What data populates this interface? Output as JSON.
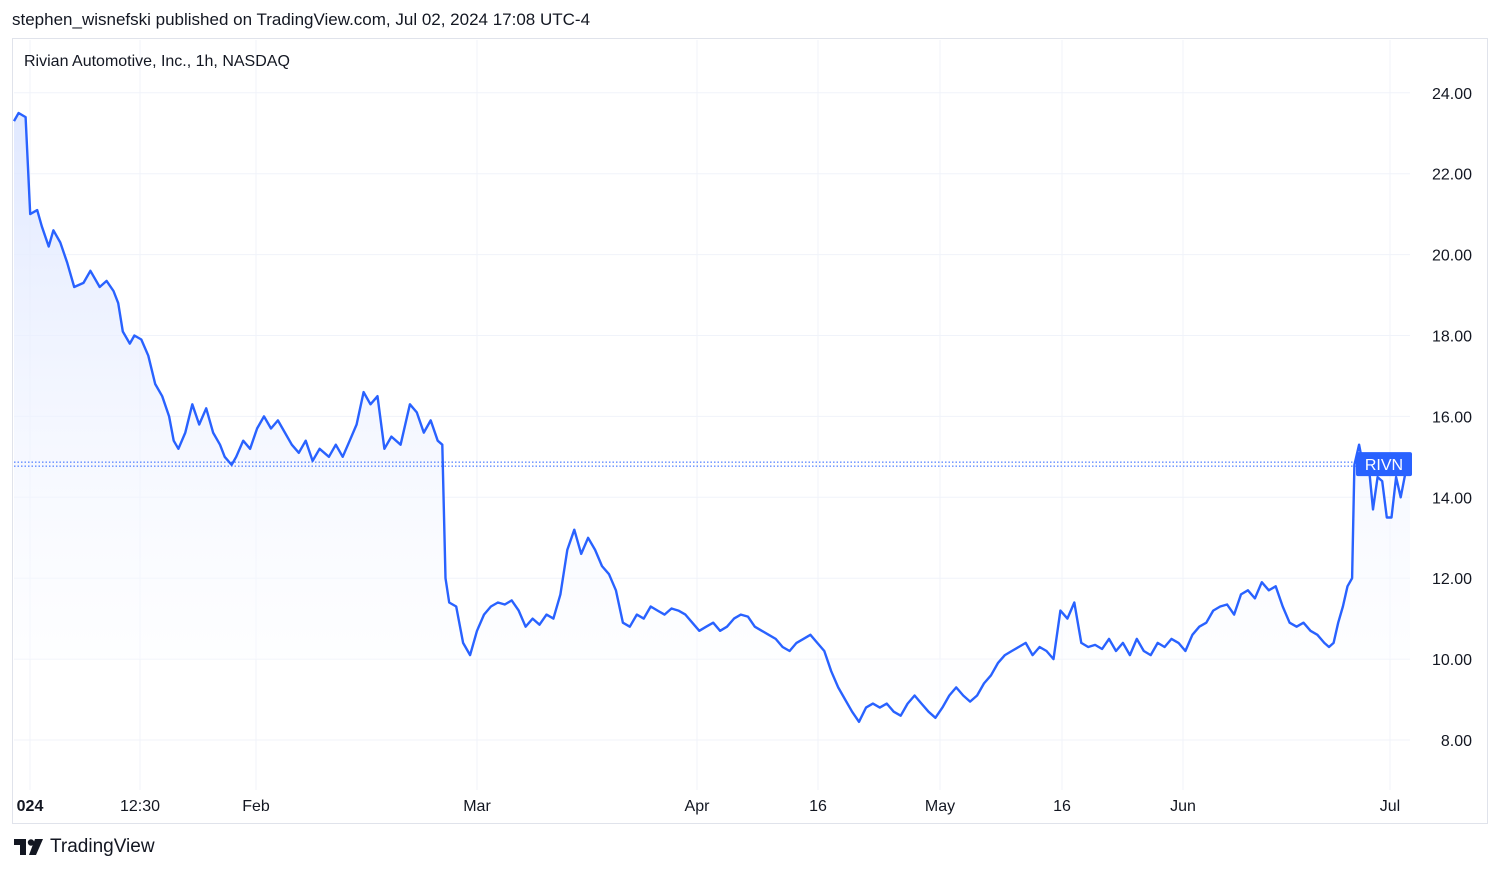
{
  "header": {
    "publish_line": "stephen_wisnefski published on TradingView.com, Jul 02, 2024 17:08 UTC-4"
  },
  "chart_data": {
    "type": "area",
    "title": "Rivian Automotive, Inc., 1h, NASDAQ",
    "symbol": "RIVN",
    "ylim": [
      7.0,
      25.2
    ],
    "y_ticks": [
      "24.00",
      "22.00",
      "20.00",
      "18.00",
      "16.00",
      "14.00",
      "12.00",
      "10.00",
      "8.00"
    ],
    "x_ticks": [
      "024",
      "12:30",
      "Feb",
      "Mar",
      "Apr",
      "16",
      "May",
      "16",
      "Jun",
      "Jul"
    ],
    "grid": true,
    "last_value": 14.82,
    "colors": {
      "line": "#2962ff",
      "label_bg": "#2962ff",
      "area_top": "#dde6ff",
      "grid": "#f0f3fa"
    },
    "series": [
      {
        "values": [
          [
            0.0,
            23.3
          ],
          [
            0.1,
            23.5
          ],
          [
            0.25,
            23.4
          ],
          [
            0.35,
            21.0
          ],
          [
            0.5,
            21.1
          ],
          [
            0.6,
            20.7
          ],
          [
            0.75,
            20.2
          ],
          [
            0.85,
            20.6
          ],
          [
            1.0,
            20.3
          ],
          [
            1.15,
            19.8
          ],
          [
            1.3,
            19.2
          ],
          [
            1.5,
            19.3
          ],
          [
            1.65,
            19.6
          ],
          [
            1.85,
            19.2
          ],
          [
            2.0,
            19.35
          ],
          [
            2.15,
            19.1
          ],
          [
            2.25,
            18.8
          ],
          [
            2.35,
            18.1
          ],
          [
            2.5,
            17.8
          ],
          [
            2.6,
            18.0
          ],
          [
            2.75,
            17.9
          ],
          [
            2.9,
            17.5
          ],
          [
            3.05,
            16.8
          ],
          [
            3.2,
            16.5
          ],
          [
            3.35,
            16.0
          ],
          [
            3.45,
            15.4
          ],
          [
            3.55,
            15.2
          ],
          [
            3.7,
            15.6
          ],
          [
            3.85,
            16.3
          ],
          [
            4.0,
            15.8
          ],
          [
            4.15,
            16.2
          ],
          [
            4.3,
            15.6
          ],
          [
            4.45,
            15.3
          ],
          [
            4.55,
            15.0
          ],
          [
            4.7,
            14.8
          ],
          [
            4.8,
            15.0
          ],
          [
            4.95,
            15.4
          ],
          [
            5.1,
            15.2
          ],
          [
            5.25,
            15.7
          ],
          [
            5.4,
            16.0
          ],
          [
            5.55,
            15.7
          ],
          [
            5.7,
            15.9
          ],
          [
            5.85,
            15.6
          ],
          [
            6.0,
            15.3
          ],
          [
            6.15,
            15.1
          ],
          [
            6.3,
            15.4
          ],
          [
            6.45,
            14.9
          ],
          [
            6.6,
            15.2
          ],
          [
            6.8,
            15.0
          ],
          [
            6.95,
            15.3
          ],
          [
            7.1,
            15.0
          ],
          [
            7.25,
            15.4
          ],
          [
            7.4,
            15.8
          ],
          [
            7.55,
            16.6
          ],
          [
            7.7,
            16.3
          ],
          [
            7.85,
            16.5
          ],
          [
            8.0,
            15.2
          ],
          [
            8.15,
            15.5
          ],
          [
            8.35,
            15.3
          ],
          [
            8.55,
            16.3
          ],
          [
            8.7,
            16.1
          ],
          [
            8.85,
            15.6
          ],
          [
            9.0,
            15.9
          ],
          [
            9.15,
            15.4
          ],
          [
            9.25,
            15.3
          ],
          [
            9.32,
            12.0
          ],
          [
            9.4,
            11.4
          ],
          [
            9.55,
            11.3
          ],
          [
            9.7,
            10.4
          ],
          [
            9.85,
            10.1
          ],
          [
            10.0,
            10.7
          ],
          [
            10.15,
            11.1
          ],
          [
            10.3,
            11.3
          ],
          [
            10.45,
            11.4
          ],
          [
            10.6,
            11.35
          ],
          [
            10.75,
            11.45
          ],
          [
            10.9,
            11.2
          ],
          [
            11.05,
            10.8
          ],
          [
            11.2,
            11.0
          ],
          [
            11.35,
            10.85
          ],
          [
            11.5,
            11.1
          ],
          [
            11.65,
            11.0
          ],
          [
            11.8,
            11.6
          ],
          [
            11.95,
            12.7
          ],
          [
            12.1,
            13.2
          ],
          [
            12.25,
            12.6
          ],
          [
            12.4,
            13.0
          ],
          [
            12.55,
            12.7
          ],
          [
            12.7,
            12.3
          ],
          [
            12.85,
            12.1
          ],
          [
            13.0,
            11.7
          ],
          [
            13.15,
            10.9
          ],
          [
            13.3,
            10.8
          ],
          [
            13.45,
            11.1
          ],
          [
            13.6,
            11.0
          ],
          [
            13.75,
            11.3
          ],
          [
            13.9,
            11.2
          ],
          [
            14.05,
            11.1
          ],
          [
            14.2,
            11.25
          ],
          [
            14.35,
            11.2
          ],
          [
            14.5,
            11.1
          ],
          [
            14.65,
            10.9
          ],
          [
            14.8,
            10.7
          ],
          [
            14.95,
            10.8
          ],
          [
            15.1,
            10.9
          ],
          [
            15.25,
            10.7
          ],
          [
            15.4,
            10.8
          ],
          [
            15.55,
            11.0
          ],
          [
            15.7,
            11.1
          ],
          [
            15.85,
            11.05
          ],
          [
            16.0,
            10.8
          ],
          [
            16.15,
            10.7
          ],
          [
            16.3,
            10.6
          ],
          [
            16.45,
            10.5
          ],
          [
            16.6,
            10.3
          ],
          [
            16.75,
            10.2
          ],
          [
            16.9,
            10.4
          ],
          [
            17.05,
            10.5
          ],
          [
            17.2,
            10.6
          ],
          [
            17.35,
            10.4
          ],
          [
            17.5,
            10.2
          ],
          [
            17.65,
            9.7
          ],
          [
            17.8,
            9.3
          ],
          [
            17.95,
            9.0
          ],
          [
            18.1,
            8.7
          ],
          [
            18.25,
            8.45
          ],
          [
            18.4,
            8.8
          ],
          [
            18.55,
            8.9
          ],
          [
            18.7,
            8.8
          ],
          [
            18.85,
            8.9
          ],
          [
            19.0,
            8.7
          ],
          [
            19.15,
            8.6
          ],
          [
            19.3,
            8.9
          ],
          [
            19.45,
            9.1
          ],
          [
            19.6,
            8.9
          ],
          [
            19.75,
            8.7
          ],
          [
            19.9,
            8.55
          ],
          [
            20.05,
            8.8
          ],
          [
            20.2,
            9.1
          ],
          [
            20.35,
            9.3
          ],
          [
            20.5,
            9.1
          ],
          [
            20.65,
            8.95
          ],
          [
            20.8,
            9.1
          ],
          [
            20.95,
            9.4
          ],
          [
            21.1,
            9.6
          ],
          [
            21.25,
            9.9
          ],
          [
            21.4,
            10.1
          ],
          [
            21.55,
            10.2
          ],
          [
            21.7,
            10.3
          ],
          [
            21.85,
            10.4
          ],
          [
            22.0,
            10.1
          ],
          [
            22.15,
            10.3
          ],
          [
            22.3,
            10.2
          ],
          [
            22.45,
            10.0
          ],
          [
            22.6,
            11.2
          ],
          [
            22.75,
            11.0
          ],
          [
            22.9,
            11.4
          ],
          [
            23.05,
            10.4
          ],
          [
            23.2,
            10.3
          ],
          [
            23.35,
            10.35
          ],
          [
            23.5,
            10.25
          ],
          [
            23.65,
            10.5
          ],
          [
            23.8,
            10.2
          ],
          [
            23.95,
            10.4
          ],
          [
            24.1,
            10.1
          ],
          [
            24.25,
            10.5
          ],
          [
            24.4,
            10.2
          ],
          [
            24.55,
            10.1
          ],
          [
            24.7,
            10.4
          ],
          [
            24.85,
            10.3
          ],
          [
            25.0,
            10.5
          ],
          [
            25.15,
            10.4
          ],
          [
            25.3,
            10.2
          ],
          [
            25.45,
            10.6
          ],
          [
            25.6,
            10.8
          ],
          [
            25.75,
            10.9
          ],
          [
            25.9,
            11.2
          ],
          [
            26.05,
            11.3
          ],
          [
            26.2,
            11.35
          ],
          [
            26.35,
            11.1
          ],
          [
            26.5,
            11.6
          ],
          [
            26.65,
            11.7
          ],
          [
            26.8,
            11.5
          ],
          [
            26.95,
            11.9
          ],
          [
            27.1,
            11.7
          ],
          [
            27.25,
            11.8
          ],
          [
            27.4,
            11.3
          ],
          [
            27.55,
            10.9
          ],
          [
            27.7,
            10.8
          ],
          [
            27.85,
            10.9
          ],
          [
            28.0,
            10.7
          ],
          [
            28.15,
            10.6
          ],
          [
            28.3,
            10.4
          ],
          [
            28.4,
            10.3
          ],
          [
            28.5,
            10.4
          ],
          [
            28.6,
            10.9
          ],
          [
            28.7,
            11.3
          ],
          [
            28.8,
            11.8
          ],
          [
            28.9,
            12.0
          ],
          [
            28.95,
            14.8
          ],
          [
            29.05,
            15.3
          ],
          [
            29.15,
            14.7
          ],
          [
            29.25,
            14.9
          ],
          [
            29.35,
            13.7
          ],
          [
            29.45,
            14.5
          ],
          [
            29.55,
            14.4
          ],
          [
            29.65,
            13.5
          ],
          [
            29.75,
            13.5
          ],
          [
            29.85,
            14.5
          ],
          [
            29.95,
            14.0
          ],
          [
            30.05,
            14.6
          ],
          [
            30.15,
            14.82
          ]
        ]
      }
    ]
  }
}
